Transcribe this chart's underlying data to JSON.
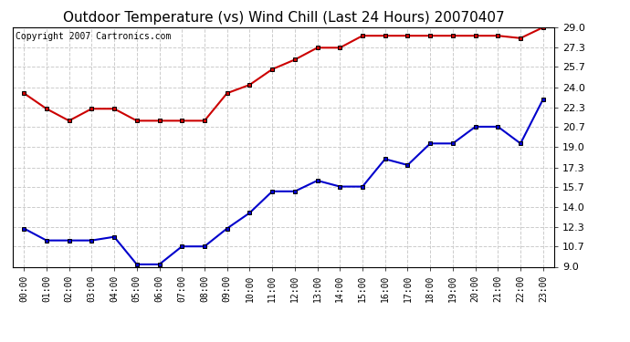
{
  "title": "Outdoor Temperature (vs) Wind Chill (Last 24 Hours) 20070407",
  "copyright": "Copyright 2007 Cartronics.com",
  "x_labels": [
    "00:00",
    "01:00",
    "02:00",
    "03:00",
    "04:00",
    "05:00",
    "06:00",
    "07:00",
    "08:00",
    "09:00",
    "10:00",
    "11:00",
    "12:00",
    "13:00",
    "14:00",
    "15:00",
    "16:00",
    "17:00",
    "18:00",
    "19:00",
    "20:00",
    "21:00",
    "22:00",
    "23:00"
  ],
  "y_ticks": [
    9.0,
    10.7,
    12.3,
    14.0,
    15.7,
    17.3,
    19.0,
    20.7,
    22.3,
    24.0,
    25.7,
    27.3,
    29.0
  ],
  "ylim": [
    9.0,
    29.0
  ],
  "red_data": [
    23.5,
    22.2,
    21.2,
    22.2,
    22.2,
    21.2,
    21.2,
    21.2,
    21.2,
    23.5,
    24.2,
    25.5,
    26.3,
    27.3,
    27.3,
    28.3,
    28.3,
    28.3,
    28.3,
    28.3,
    28.3,
    28.3,
    28.1,
    29.0
  ],
  "blue_data": [
    12.2,
    11.2,
    11.2,
    11.2,
    11.5,
    9.2,
    9.2,
    10.7,
    10.7,
    12.2,
    13.5,
    15.3,
    15.3,
    16.2,
    15.7,
    15.7,
    18.0,
    17.5,
    19.3,
    19.3,
    20.7,
    20.7,
    19.3,
    23.0
  ],
  "red_color": "#cc0000",
  "blue_color": "#0000cc",
  "bg_color": "#ffffff",
  "grid_color": "#cccccc",
  "title_fontsize": 11,
  "copyright_fontsize": 7
}
